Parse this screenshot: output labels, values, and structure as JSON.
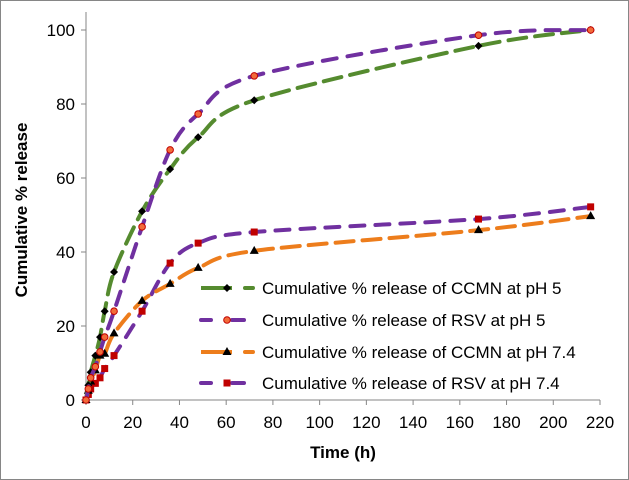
{
  "chart_data": {
    "type": "line",
    "title": "",
    "xlabel": "Time (h)",
    "ylabel": "Cumulative % release",
    "xlim": [
      0,
      220
    ],
    "ylim": [
      0,
      100
    ],
    "xticks": [
      0,
      20,
      40,
      60,
      80,
      100,
      120,
      140,
      160,
      180,
      200,
      220
    ],
    "yticks": [
      0,
      20,
      40,
      60,
      80,
      100
    ],
    "grid": false,
    "legend_position": "bottom-right",
    "series": [
      {
        "name": "Cumulative % release of CCMN at pH 5",
        "color": "#558B2F",
        "marker": "diamond",
        "marker_color": "#000000",
        "x": [
          0,
          1,
          2,
          4,
          6,
          8,
          12,
          24,
          36,
          48,
          72,
          168,
          216
        ],
        "y": [
          0,
          4,
          7.5,
          12,
          17,
          24,
          34.6,
          51,
          62.4,
          71,
          81,
          95.7,
          100
        ]
      },
      {
        "name": "Cumulative % release of RSV at pH 5",
        "color": "#7030A0",
        "marker": "circle",
        "marker_color": "#F26B3A",
        "x": [
          0,
          1,
          2,
          4,
          6,
          8,
          12,
          24,
          36,
          48,
          72,
          168,
          216
        ],
        "y": [
          0,
          3,
          6,
          9,
          13,
          17,
          24,
          46.8,
          67.6,
          77.3,
          87.6,
          98.6,
          100
        ]
      },
      {
        "name": "Cumulative % release of CCMN at pH 7.4",
        "color": "#ED7D1C",
        "marker": "triangle",
        "marker_color": "#000000",
        "x": [
          0,
          1,
          2,
          4,
          6,
          8,
          12,
          24,
          36,
          48,
          72,
          168,
          216
        ],
        "y": [
          0,
          2.5,
          5,
          8,
          12,
          12.5,
          18,
          26.8,
          31.4,
          35.7,
          40.3,
          45.9,
          49.7
        ]
      },
      {
        "name": "Cumulative % release of RSV at pH 7.4",
        "color": "#7030A0",
        "marker": "square",
        "marker_color": "#C00000",
        "x": [
          0,
          1,
          2,
          4,
          6,
          8,
          12,
          24,
          36,
          48,
          72,
          168,
          216
        ],
        "y": [
          0,
          1.5,
          3,
          4.5,
          6,
          8.5,
          12,
          24,
          37,
          42.4,
          45.4,
          48.9,
          52.2
        ]
      }
    ]
  }
}
